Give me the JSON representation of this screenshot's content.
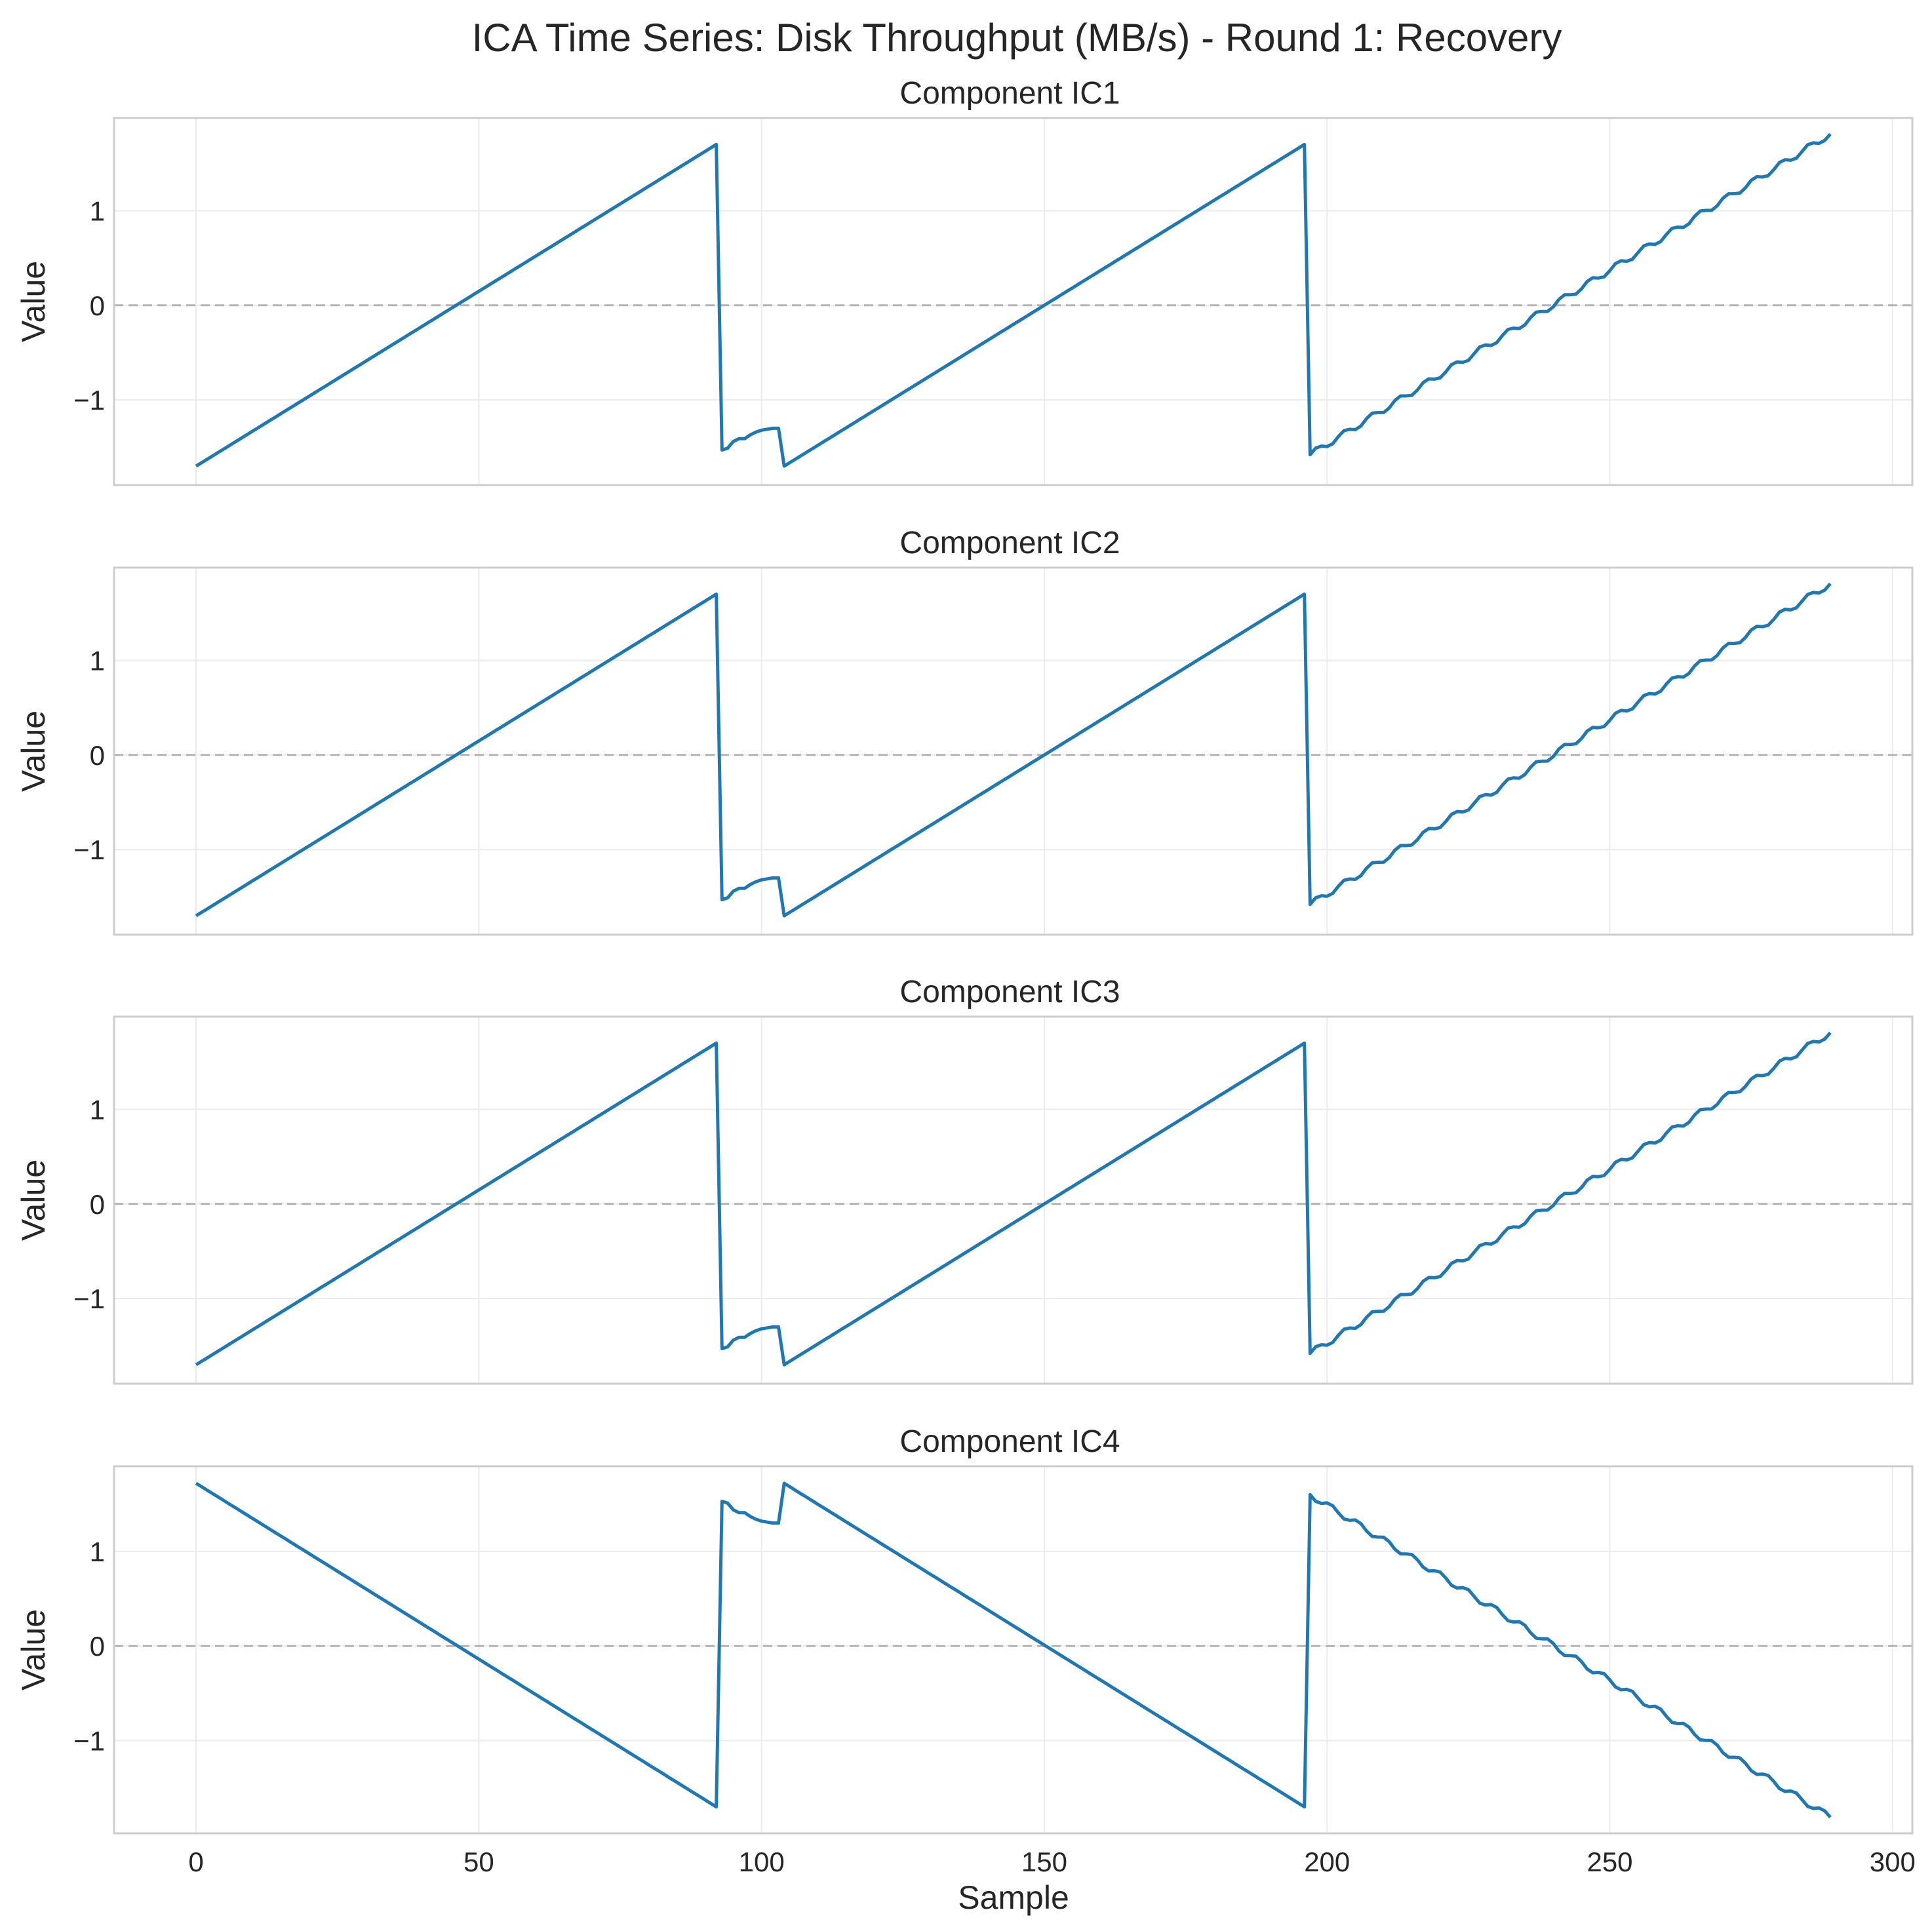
{
  "chart_data": {
    "type": "line",
    "title": "ICA Time Series: Disk Throughput (MB/s) - Round 1: Recovery",
    "xlabel": "Sample",
    "ylabel": "Value",
    "xlim": [
      -14.5,
      303.5
    ],
    "xticks": [
      0,
      50,
      100,
      150,
      200,
      250,
      300
    ],
    "yticks": [
      -1,
      0,
      1
    ],
    "yticklabels": [
      "−1",
      "0",
      "1"
    ],
    "grid": true,
    "zero_line": true,
    "color": "#1f77b4",
    "panels": [
      {
        "title": "Component IC1",
        "ylim": [
          -1.9,
          1.98
        ],
        "x": [
          0,
          92,
          93,
          94,
          95,
          96,
          97,
          98,
          99,
          100,
          101,
          102,
          103,
          104,
          196,
          197,
          289
        ],
        "y": [
          -1.7,
          1.7,
          -1.53,
          -1.51,
          -1.44,
          -1.41,
          -1.41,
          -1.37,
          -1.34,
          -1.32,
          -1.31,
          -1.3,
          -1.3,
          -1.7,
          1.7,
          -1.58,
          1.81
        ]
      },
      {
        "title": "Component IC2",
        "ylim": [
          -1.9,
          1.98
        ],
        "x": [
          0,
          92,
          93,
          94,
          95,
          96,
          97,
          98,
          99,
          100,
          101,
          102,
          103,
          104,
          196,
          197,
          289
        ],
        "y": [
          -1.7,
          1.7,
          -1.53,
          -1.51,
          -1.44,
          -1.41,
          -1.41,
          -1.37,
          -1.34,
          -1.32,
          -1.31,
          -1.3,
          -1.3,
          -1.7,
          1.7,
          -1.58,
          1.81
        ]
      },
      {
        "title": "Component IC3",
        "ylim": [
          -1.9,
          1.98
        ],
        "x": [
          0,
          92,
          93,
          94,
          95,
          96,
          97,
          98,
          99,
          100,
          101,
          102,
          103,
          104,
          196,
          197,
          289
        ],
        "y": [
          -1.7,
          1.7,
          -1.53,
          -1.51,
          -1.44,
          -1.41,
          -1.41,
          -1.37,
          -1.34,
          -1.32,
          -1.31,
          -1.3,
          -1.3,
          -1.7,
          1.7,
          -1.58,
          1.81
        ]
      },
      {
        "title": "Component IC4",
        "ylim": [
          -1.98,
          1.9
        ],
        "x": [
          0,
          92,
          93,
          94,
          95,
          96,
          97,
          98,
          99,
          100,
          101,
          102,
          103,
          104,
          196,
          197,
          289
        ],
        "y": [
          1.72,
          -1.7,
          1.53,
          1.51,
          1.44,
          1.41,
          1.41,
          1.37,
          1.34,
          1.32,
          1.31,
          1.3,
          1.3,
          1.72,
          -1.7,
          1.6,
          -1.81
        ]
      }
    ]
  }
}
